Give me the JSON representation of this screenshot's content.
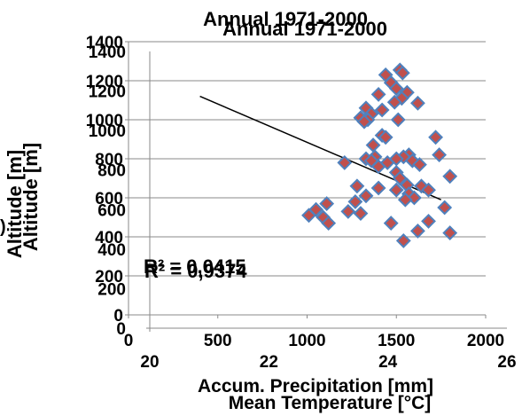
{
  "chart_data": [
    {
      "type": "scatter",
      "title": "Annual 1971-2000",
      "xlabel": "Accum. Precipitation [mm]",
      "ylabel": "Altitude [m]",
      "xlim": [
        0,
        2000
      ],
      "ylim": [
        0,
        1400
      ],
      "xticks": [
        "0",
        "500",
        "1000",
        "1500",
        "2000"
      ],
      "yticks": [
        "0",
        "200",
        "400",
        "600",
        "800",
        "1000",
        "1200",
        "1400"
      ],
      "grid": "horizontal",
      "r2_label": "R² = 0,0415",
      "series": [
        {
          "points": [
            [
              1520,
              1255
            ],
            [
              1535,
              1240
            ],
            [
              1440,
              1230
            ],
            [
              1470,
              1190
            ],
            [
              1500,
              1160
            ],
            [
              1560,
              1140
            ],
            [
              1400,
              1130
            ],
            [
              1530,
              1110
            ],
            [
              1490,
              1090
            ],
            [
              1620,
              1085
            ],
            [
              1330,
              1060
            ],
            [
              1420,
              1050
            ],
            [
              1360,
              1030
            ],
            [
              1300,
              1010
            ],
            [
              1340,
              1000
            ],
            [
              1510,
              1000
            ],
            [
              1320,
              990
            ],
            [
              1420,
              920
            ],
            [
              1440,
              910
            ],
            [
              1720,
              910
            ],
            [
              1370,
              870
            ],
            [
              1380,
              810
            ],
            [
              1330,
              800
            ],
            [
              1570,
              820
            ],
            [
              1540,
              810
            ],
            [
              1500,
              800
            ],
            [
              1590,
              790
            ],
            [
              1360,
              790
            ],
            [
              1630,
              770
            ],
            [
              1740,
              820
            ],
            [
              1210,
              780
            ],
            [
              1450,
              780
            ],
            [
              1400,
              760
            ],
            [
              1500,
              730
            ],
            [
              1520,
              700
            ],
            [
              1800,
              710
            ],
            [
              1280,
              660
            ],
            [
              1400,
              650
            ],
            [
              1560,
              665
            ],
            [
              1640,
              660
            ],
            [
              1680,
              640
            ],
            [
              1500,
              640
            ],
            [
              1570,
              620
            ],
            [
              1330,
              610
            ],
            [
              1600,
              600
            ],
            [
              1550,
              590
            ],
            [
              1270,
              580
            ],
            [
              1110,
              570
            ],
            [
              1050,
              540
            ],
            [
              1770,
              550
            ],
            [
              1230,
              530
            ],
            [
              1300,
              520
            ],
            [
              1010,
              510
            ],
            [
              1090,
              500
            ],
            [
              1680,
              480
            ],
            [
              1470,
              470
            ],
            [
              1120,
              470
            ],
            [
              1620,
              430
            ],
            [
              1800,
              420
            ],
            [
              1540,
              380
            ]
          ]
        }
      ],
      "trendline": {
        "x": [
          400,
          1750
        ],
        "y": [
          1120,
          590
        ]
      }
    },
    {
      "type": "scatter",
      "title": "Annual 1971-2000",
      "xlabel": "Mean Temperature [°C]",
      "ylabel": "Altitude [m]",
      "xlim": [
        20,
        26
      ],
      "ylim": [
        0,
        1400
      ],
      "xticks": [
        "20",
        "22",
        "24",
        "26"
      ],
      "yticks": [
        "0",
        "200",
        "400",
        "600",
        "800",
        "1000",
        "1200",
        "1400"
      ],
      "r2_label": "R² = 0,9374"
    }
  ],
  "legend_fragment": ")"
}
